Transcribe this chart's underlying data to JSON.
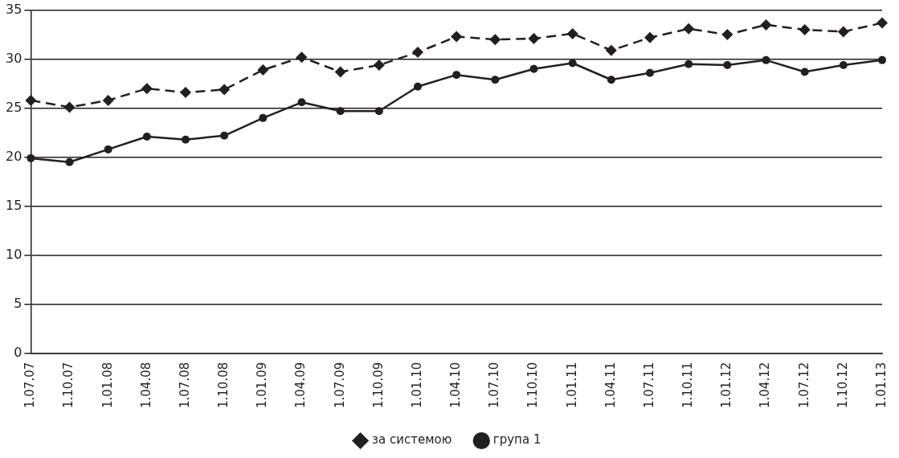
{
  "chart_data": {
    "type": "line",
    "categories": [
      "1.07.07",
      "1.10.07",
      "1.01.08",
      "1.04.08",
      "1.07.08",
      "1.10.08",
      "1.01.09",
      "1.04.09",
      "1.07.09",
      "1.10.09",
      "1.01.10",
      "1.04.10",
      "1.07.10",
      "1.10.10",
      "1.01.11",
      "1.04.11",
      "1.07.11",
      "1.10.11",
      "1.01.12",
      "1.04.12",
      "1.07.12",
      "1.10.12",
      "1.01.13"
    ],
    "series": [
      {
        "name": "за системою",
        "color": "#231f20",
        "marker": "diamond",
        "line_style": "dashed",
        "values": [
          25.8,
          25.1,
          25.8,
          27.0,
          26.6,
          26.9,
          28.9,
          30.2,
          28.7,
          29.4,
          30.7,
          32.3,
          32.0,
          32.1,
          32.6,
          30.9,
          32.2,
          33.1,
          32.5,
          33.5,
          33.0,
          32.8,
          33.7
        ]
      },
      {
        "name": "група 1",
        "color": "#231f20",
        "marker": "circle",
        "line_style": "solid",
        "values": [
          19.9,
          19.5,
          20.8,
          22.1,
          21.8,
          22.2,
          24.0,
          25.6,
          24.7,
          24.7,
          27.2,
          28.4,
          27.9,
          29.0,
          29.6,
          27.9,
          28.6,
          29.5,
          29.4,
          29.9,
          28.7,
          29.4,
          29.9
        ]
      }
    ],
    "ylim": [
      0,
      35
    ],
    "yticks": [
      0,
      5,
      10,
      15,
      20,
      25,
      30,
      35
    ],
    "grid": "y",
    "legend": "bottom"
  }
}
